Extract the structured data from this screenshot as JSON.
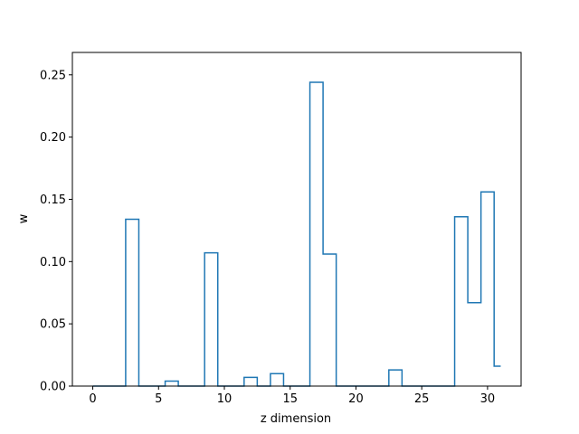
{
  "chart_data": {
    "type": "line",
    "drawstyle": "steps-mid",
    "xlabel": "z dimension",
    "ylabel": "w",
    "xlim": [
      -1.55,
      32.55
    ],
    "ylim": [
      0,
      0.268
    ],
    "x_ticks": [
      0,
      5,
      10,
      15,
      20,
      25,
      30
    ],
    "y_ticks": [
      0.0,
      0.05,
      0.1,
      0.15,
      0.2,
      0.25
    ],
    "x_tick_labels": [
      "0",
      "5",
      "10",
      "15",
      "20",
      "25",
      "30"
    ],
    "y_tick_labels": [
      "0.00",
      "0.05",
      "0.10",
      "0.15",
      "0.20",
      "0.25"
    ],
    "grid": false,
    "series": [
      {
        "color": "#1f77b4",
        "x": [
          0,
          1,
          2,
          3,
          4,
          5,
          6,
          7,
          8,
          9,
          10,
          11,
          12,
          13,
          14,
          15,
          16,
          17,
          18,
          19,
          20,
          21,
          22,
          23,
          24,
          25,
          26,
          27,
          28,
          29,
          30,
          31
        ],
        "values": [
          0,
          0,
          0,
          0.134,
          0,
          0,
          0.004,
          0,
          0,
          0.107,
          0,
          0,
          0.007,
          0,
          0.01,
          0,
          0,
          0.244,
          0.106,
          0,
          0,
          0,
          0,
          0.013,
          0,
          0,
          0,
          0,
          0.136,
          0.067,
          0.156,
          0.016
        ]
      }
    ]
  }
}
